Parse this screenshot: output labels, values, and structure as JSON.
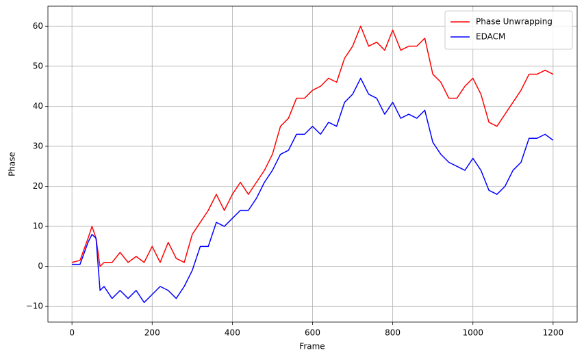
{
  "chart_data": {
    "type": "line",
    "x_label": "Frame",
    "y_label": "Phase",
    "x": [
      0,
      20,
      40,
      50,
      60,
      70,
      80,
      100,
      120,
      140,
      160,
      180,
      200,
      220,
      240,
      260,
      280,
      300,
      320,
      340,
      360,
      380,
      400,
      420,
      440,
      460,
      480,
      500,
      520,
      540,
      560,
      580,
      600,
      620,
      640,
      660,
      680,
      700,
      720,
      740,
      760,
      780,
      800,
      820,
      840,
      860,
      880,
      900,
      920,
      940,
      960,
      980,
      1000,
      1020,
      1040,
      1060,
      1080,
      1100,
      1120,
      1140,
      1160,
      1180,
      1200
    ],
    "series": [
      {
        "name": "Phase Unwrapping",
        "color": "#ff0000",
        "values": [
          1,
          1.5,
          7,
          10,
          7,
          0,
          1,
          1,
          3.5,
          1,
          2.5,
          1,
          5,
          1,
          6,
          2,
          1,
          8,
          11,
          14,
          18,
          14,
          18,
          21,
          18,
          21,
          24,
          28,
          35,
          37,
          42,
          42,
          44,
          45,
          47,
          46,
          52,
          55,
          60,
          55,
          56,
          54,
          59,
          54,
          55,
          55,
          57,
          48,
          46,
          42,
          42,
          45,
          47,
          43,
          36,
          35,
          38,
          41,
          44,
          48,
          48,
          49,
          48
        ]
      },
      {
        "name": "EDACM",
        "color": "#0000ff",
        "values": [
          0.5,
          0.5,
          6,
          8,
          7,
          -6,
          -5,
          -8,
          -6,
          -8,
          -6,
          -9,
          -7,
          -5,
          -6,
          -8,
          -5,
          -1,
          5,
          5,
          11,
          10,
          12,
          14,
          14,
          17,
          21,
          24,
          28,
          29,
          33,
          33,
          35,
          33,
          36,
          35,
          41,
          43,
          47,
          43,
          42,
          38,
          41,
          37,
          38,
          37,
          39,
          31,
          28,
          26,
          25,
          24,
          27,
          24,
          19,
          18,
          20,
          24,
          26,
          32,
          32,
          33,
          31.5
        ]
      }
    ],
    "xlim": [
      -60,
      1260
    ],
    "ylim": [
      -13.9,
      65
    ],
    "xticks": [
      0,
      200,
      400,
      600,
      800,
      1000,
      1200
    ],
    "yticks": [
      {
        "value": -10,
        "label": "−10"
      },
      0,
      10,
      20,
      30,
      40,
      50,
      60
    ],
    "grid": true,
    "legend": "upper right"
  }
}
